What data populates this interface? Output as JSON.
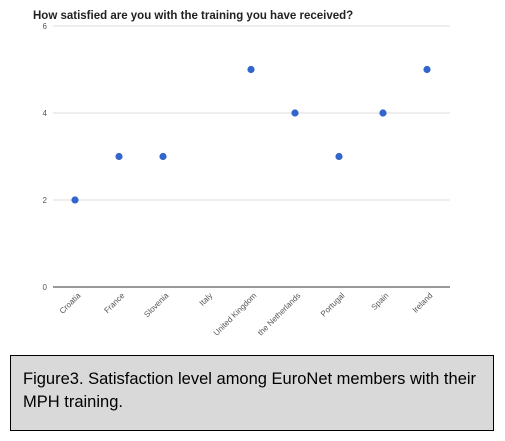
{
  "chart_data": {
    "type": "scatter",
    "title": "How satisfied are you with the training you have received?",
    "xlabel": "",
    "ylabel": "",
    "categories": [
      "Croatia",
      "France",
      "Slovenia",
      "Italy",
      "United Kingdom",
      "the Netherlands",
      "Portugal",
      "Spain",
      "Ireland"
    ],
    "values": [
      2,
      3,
      3,
      null,
      5,
      4,
      3,
      4,
      5
    ],
    "ylim": [
      0,
      6
    ],
    "yticks": [
      "0",
      "2",
      "4",
      "6"
    ],
    "grid": true,
    "legend": "none",
    "point_color": "#3366cc"
  },
  "caption": {
    "text": "Figure3. Satisfaction level among EuroNet members with their MPH training."
  }
}
